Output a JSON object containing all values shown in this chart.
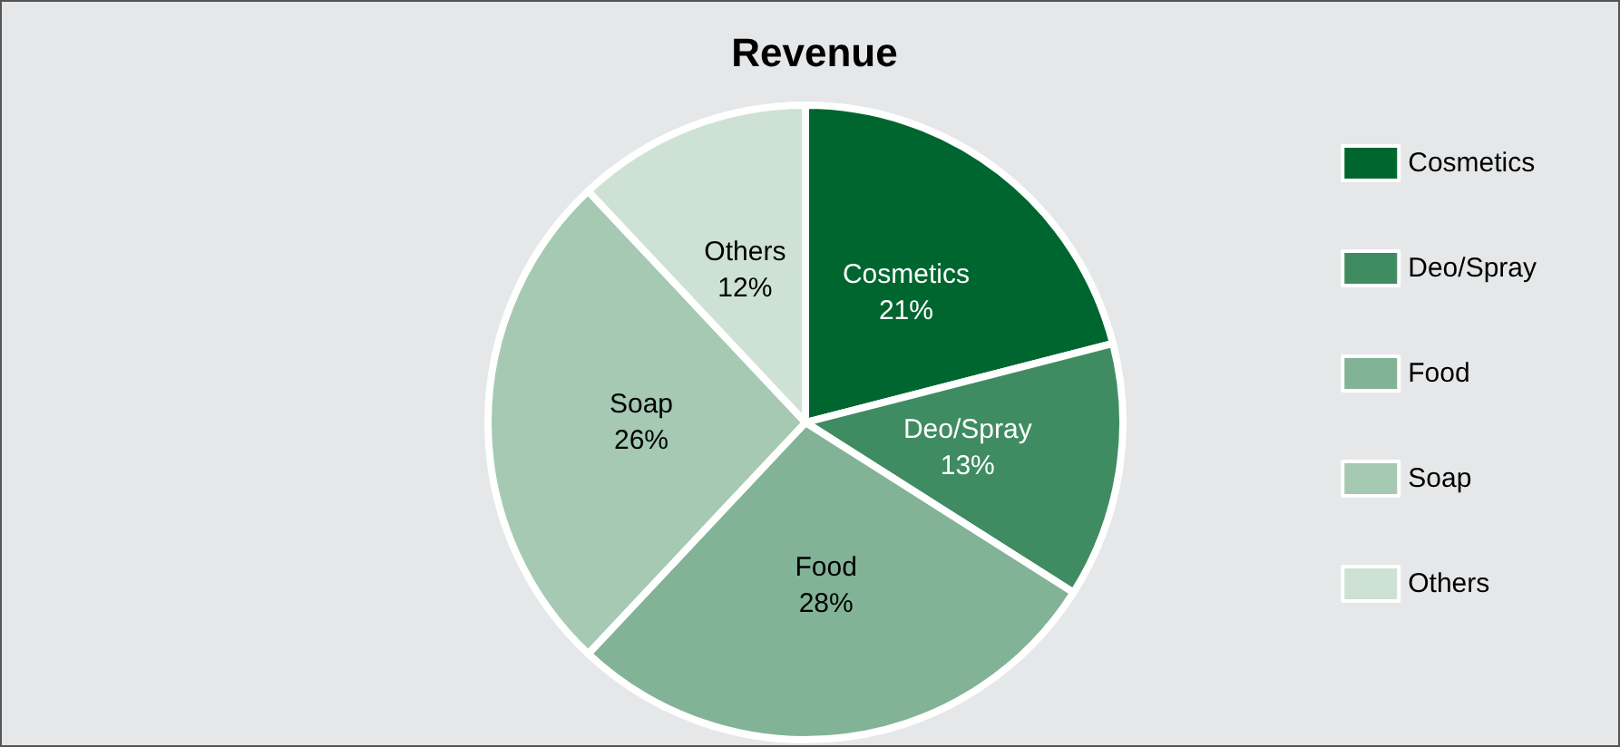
{
  "chart_data": {
    "type": "pie",
    "title": "Revenue",
    "categories": [
      "Cosmetics",
      "Deo/Spray",
      "Food",
      "Soap",
      "Others"
    ],
    "values": [
      21,
      13,
      28,
      26,
      12
    ],
    "value_labels": [
      "21%",
      "13%",
      "28%",
      "26%",
      "12%"
    ],
    "colors": [
      "#00662f",
      "#3f8c62",
      "#82b396",
      "#a5c9b2",
      "#cde2d4"
    ],
    "legend": "right"
  }
}
